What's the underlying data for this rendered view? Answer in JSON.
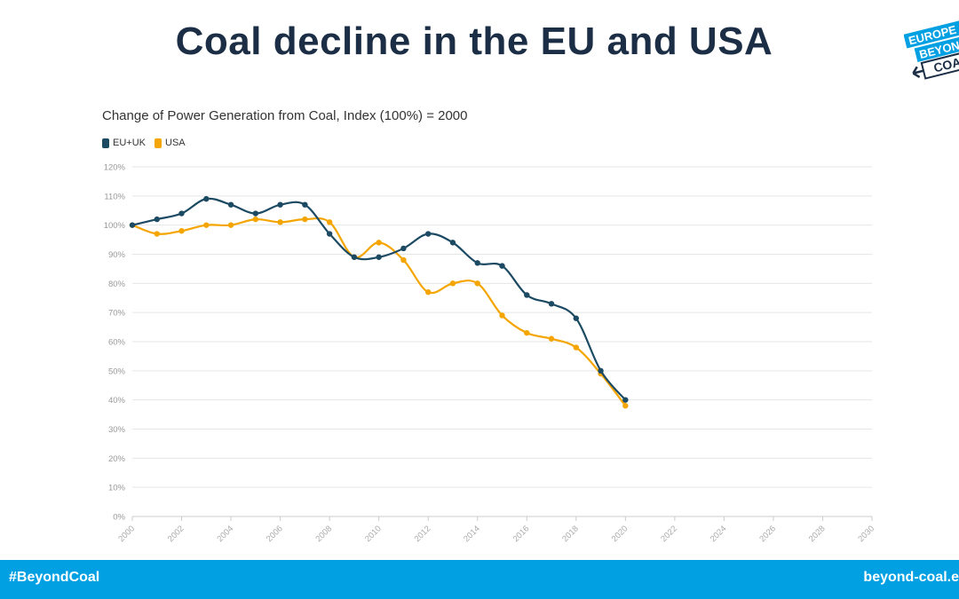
{
  "page": {
    "title": "Coal decline in the EU and USA",
    "logo": {
      "text_lines": [
        "EUROPE",
        "BEYOND",
        "COAL"
      ],
      "colors": {
        "blue": "#00a0e3",
        "dark": "#1b2e45"
      }
    },
    "footer": {
      "left": "#BeyondCoal",
      "right": "beyond-coal.e",
      "background": "#00a0e3"
    }
  },
  "chart_data": {
    "type": "line",
    "title": "Change of Power Generation from Coal, Index (100%) = 2000",
    "xlabel": "",
    "ylabel": "",
    "x": [
      2000,
      2001,
      2002,
      2003,
      2004,
      2005,
      2006,
      2007,
      2008,
      2009,
      2010,
      2011,
      2012,
      2013,
      2014,
      2015,
      2016,
      2017,
      2018,
      2019,
      2020
    ],
    "xlim": [
      2000,
      2030
    ],
    "xticks": [
      "2000",
      "2002",
      "2004",
      "2006",
      "2008",
      "2010",
      "2012",
      "2014",
      "2016",
      "2018",
      "2020",
      "2022",
      "2024",
      "2026",
      "2028",
      "2030"
    ],
    "ylim": [
      0,
      120
    ],
    "yticks": [
      "0%",
      "10%",
      "20%",
      "30%",
      "40%",
      "50%",
      "60%",
      "70%",
      "80%",
      "90%",
      "100%",
      "110%",
      "120%"
    ],
    "grid": true,
    "legend_position": "top-left",
    "series": [
      {
        "name": "EU+UK",
        "color": "#1c4a63",
        "values": [
          100,
          102,
          104,
          109,
          107,
          104,
          107,
          107,
          97,
          89,
          89,
          92,
          97,
          94,
          87,
          86,
          76,
          73,
          68,
          50,
          40
        ]
      },
      {
        "name": "USA",
        "color": "#f5a500",
        "values": [
          100,
          97,
          98,
          100,
          100,
          102,
          101,
          102,
          101,
          89,
          94,
          88,
          77,
          80,
          80,
          69,
          63,
          61,
          58,
          49,
          38
        ]
      }
    ]
  }
}
